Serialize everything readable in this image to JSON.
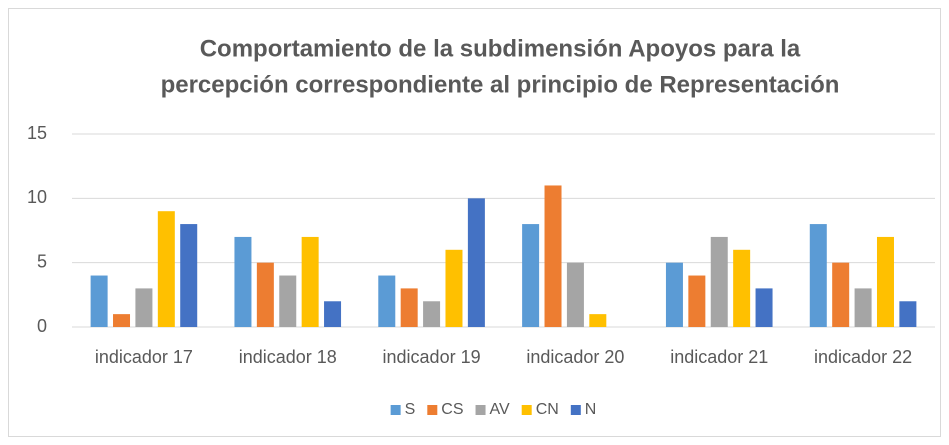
{
  "chart_data": {
    "type": "bar",
    "title": [
      "Comportamiento de la subdimensión Apoyos para la",
      "percepción correspondiente al principio de Representación"
    ],
    "categories": [
      "indicador 17",
      "indicador 18",
      "indicador 19",
      "indicador 20",
      "indicador 21",
      "indicador 22"
    ],
    "series": [
      {
        "name": "S",
        "color": "#5b9bd5",
        "values": [
          4,
          7,
          4,
          8,
          5,
          8
        ]
      },
      {
        "name": "CS",
        "color": "#ed7d31",
        "values": [
          1,
          5,
          3,
          11,
          4,
          5
        ]
      },
      {
        "name": "AV",
        "color": "#a5a5a5",
        "values": [
          3,
          4,
          2,
          5,
          7,
          3
        ]
      },
      {
        "name": "CN",
        "color": "#ffc000",
        "values": [
          9,
          7,
          6,
          1,
          6,
          7
        ]
      },
      {
        "name": "N",
        "color": "#4472c4",
        "values": [
          8,
          2,
          10,
          0,
          3,
          2
        ]
      }
    ],
    "ylim": [
      0,
      15
    ],
    "yticks": [
      0,
      5,
      10,
      15
    ],
    "grid": true,
    "legend": "bottom"
  }
}
